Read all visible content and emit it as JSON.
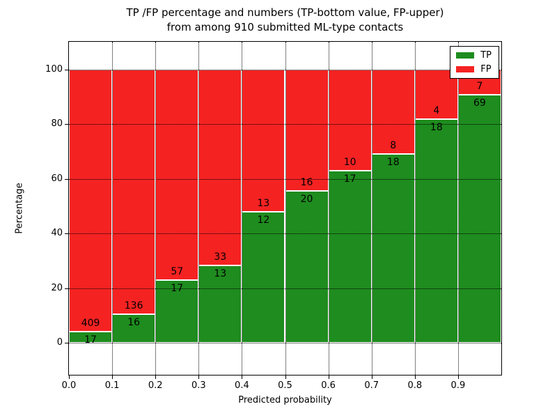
{
  "figure": {
    "title_line1": "TP /FP percentage and numbers (TP-bottom value, FP-upper)",
    "title_line2": "from among 910 submitted ML-type contacts"
  },
  "chart_data": {
    "type": "bar",
    "stacked": true,
    "normalized": "percent",
    "title": "TP /FP percentage and numbers (TP-bottom value, FP-upper) from among 910 submitted ML-type contacts",
    "xlabel": "Predicted probability",
    "ylabel": "Percentage",
    "total_contacts": 910,
    "categories": [
      "0.0",
      "0.1",
      "0.2",
      "0.3",
      "0.4",
      "0.5",
      "0.6",
      "0.7",
      "0.8",
      "0.9"
    ],
    "series": [
      {
        "name": "TP",
        "color": "#1e8c1e",
        "values": [
          17,
          16,
          17,
          13,
          12,
          20,
          17,
          18,
          18,
          69
        ]
      },
      {
        "name": "FP",
        "color": "#f52222",
        "values": [
          409,
          136,
          57,
          33,
          13,
          16,
          10,
          8,
          4,
          7
        ]
      }
    ],
    "tp_percent": [
      3.99,
      10.53,
      22.97,
      28.26,
      48.0,
      55.56,
      62.96,
      69.23,
      81.82,
      90.79
    ],
    "yticks": [
      0,
      20,
      40,
      60,
      80,
      100
    ],
    "ytick_labels": [
      "0",
      "20",
      "40",
      "60",
      "80",
      "100"
    ],
    "xlim": [
      0.0,
      1.0
    ],
    "ylim": [
      -13,
      110
    ],
    "grid": true,
    "grid_style": "dotted",
    "legend_position": "upper right",
    "legend_entries": [
      "TP",
      "FP"
    ]
  }
}
